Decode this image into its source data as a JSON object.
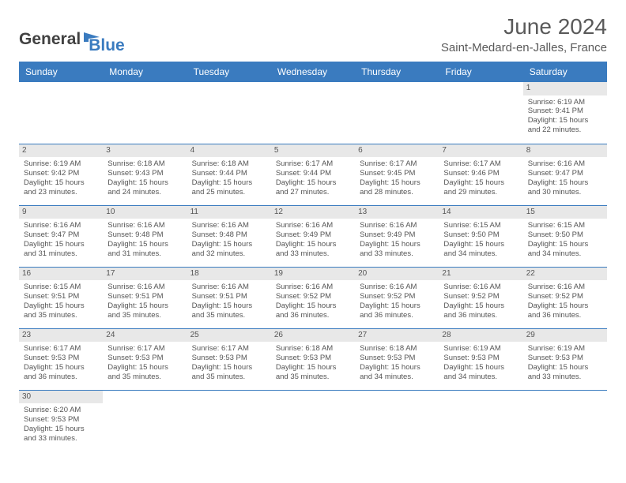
{
  "logo": {
    "dark": "General",
    "blue": "Blue"
  },
  "title": "June 2024",
  "location": "Saint-Medard-en-Jalles, France",
  "weekdays": [
    "Sunday",
    "Monday",
    "Tuesday",
    "Wednesday",
    "Thursday",
    "Friday",
    "Saturday"
  ],
  "colors": {
    "header_bg": "#3a7bbf",
    "header_fg": "#ffffff",
    "daynum_bg": "#e8e8e8",
    "rule": "#3a7bbf",
    "text": "#555555"
  },
  "grid": [
    [
      {
        "n": "",
        "sr": "",
        "ss": "",
        "dl": ""
      },
      {
        "n": "",
        "sr": "",
        "ss": "",
        "dl": ""
      },
      {
        "n": "",
        "sr": "",
        "ss": "",
        "dl": ""
      },
      {
        "n": "",
        "sr": "",
        "ss": "",
        "dl": ""
      },
      {
        "n": "",
        "sr": "",
        "ss": "",
        "dl": ""
      },
      {
        "n": "",
        "sr": "",
        "ss": "",
        "dl": ""
      },
      {
        "n": "1",
        "sr": "Sunrise: 6:19 AM",
        "ss": "Sunset: 9:41 PM",
        "dl": "Daylight: 15 hours and 22 minutes."
      }
    ],
    [
      {
        "n": "2",
        "sr": "Sunrise: 6:19 AM",
        "ss": "Sunset: 9:42 PM",
        "dl": "Daylight: 15 hours and 23 minutes."
      },
      {
        "n": "3",
        "sr": "Sunrise: 6:18 AM",
        "ss": "Sunset: 9:43 PM",
        "dl": "Daylight: 15 hours and 24 minutes."
      },
      {
        "n": "4",
        "sr": "Sunrise: 6:18 AM",
        "ss": "Sunset: 9:44 PM",
        "dl": "Daylight: 15 hours and 25 minutes."
      },
      {
        "n": "5",
        "sr": "Sunrise: 6:17 AM",
        "ss": "Sunset: 9:44 PM",
        "dl": "Daylight: 15 hours and 27 minutes."
      },
      {
        "n": "6",
        "sr": "Sunrise: 6:17 AM",
        "ss": "Sunset: 9:45 PM",
        "dl": "Daylight: 15 hours and 28 minutes."
      },
      {
        "n": "7",
        "sr": "Sunrise: 6:17 AM",
        "ss": "Sunset: 9:46 PM",
        "dl": "Daylight: 15 hours and 29 minutes."
      },
      {
        "n": "8",
        "sr": "Sunrise: 6:16 AM",
        "ss": "Sunset: 9:47 PM",
        "dl": "Daylight: 15 hours and 30 minutes."
      }
    ],
    [
      {
        "n": "9",
        "sr": "Sunrise: 6:16 AM",
        "ss": "Sunset: 9:47 PM",
        "dl": "Daylight: 15 hours and 31 minutes."
      },
      {
        "n": "10",
        "sr": "Sunrise: 6:16 AM",
        "ss": "Sunset: 9:48 PM",
        "dl": "Daylight: 15 hours and 31 minutes."
      },
      {
        "n": "11",
        "sr": "Sunrise: 6:16 AM",
        "ss": "Sunset: 9:48 PM",
        "dl": "Daylight: 15 hours and 32 minutes."
      },
      {
        "n": "12",
        "sr": "Sunrise: 6:16 AM",
        "ss": "Sunset: 9:49 PM",
        "dl": "Daylight: 15 hours and 33 minutes."
      },
      {
        "n": "13",
        "sr": "Sunrise: 6:16 AM",
        "ss": "Sunset: 9:49 PM",
        "dl": "Daylight: 15 hours and 33 minutes."
      },
      {
        "n": "14",
        "sr": "Sunrise: 6:15 AM",
        "ss": "Sunset: 9:50 PM",
        "dl": "Daylight: 15 hours and 34 minutes."
      },
      {
        "n": "15",
        "sr": "Sunrise: 6:15 AM",
        "ss": "Sunset: 9:50 PM",
        "dl": "Daylight: 15 hours and 34 minutes."
      }
    ],
    [
      {
        "n": "16",
        "sr": "Sunrise: 6:15 AM",
        "ss": "Sunset: 9:51 PM",
        "dl": "Daylight: 15 hours and 35 minutes."
      },
      {
        "n": "17",
        "sr": "Sunrise: 6:16 AM",
        "ss": "Sunset: 9:51 PM",
        "dl": "Daylight: 15 hours and 35 minutes."
      },
      {
        "n": "18",
        "sr": "Sunrise: 6:16 AM",
        "ss": "Sunset: 9:51 PM",
        "dl": "Daylight: 15 hours and 35 minutes."
      },
      {
        "n": "19",
        "sr": "Sunrise: 6:16 AM",
        "ss": "Sunset: 9:52 PM",
        "dl": "Daylight: 15 hours and 36 minutes."
      },
      {
        "n": "20",
        "sr": "Sunrise: 6:16 AM",
        "ss": "Sunset: 9:52 PM",
        "dl": "Daylight: 15 hours and 36 minutes."
      },
      {
        "n": "21",
        "sr": "Sunrise: 6:16 AM",
        "ss": "Sunset: 9:52 PM",
        "dl": "Daylight: 15 hours and 36 minutes."
      },
      {
        "n": "22",
        "sr": "Sunrise: 6:16 AM",
        "ss": "Sunset: 9:52 PM",
        "dl": "Daylight: 15 hours and 36 minutes."
      }
    ],
    [
      {
        "n": "23",
        "sr": "Sunrise: 6:17 AM",
        "ss": "Sunset: 9:53 PM",
        "dl": "Daylight: 15 hours and 36 minutes."
      },
      {
        "n": "24",
        "sr": "Sunrise: 6:17 AM",
        "ss": "Sunset: 9:53 PM",
        "dl": "Daylight: 15 hours and 35 minutes."
      },
      {
        "n": "25",
        "sr": "Sunrise: 6:17 AM",
        "ss": "Sunset: 9:53 PM",
        "dl": "Daylight: 15 hours and 35 minutes."
      },
      {
        "n": "26",
        "sr": "Sunrise: 6:18 AM",
        "ss": "Sunset: 9:53 PM",
        "dl": "Daylight: 15 hours and 35 minutes."
      },
      {
        "n": "27",
        "sr": "Sunrise: 6:18 AM",
        "ss": "Sunset: 9:53 PM",
        "dl": "Daylight: 15 hours and 34 minutes."
      },
      {
        "n": "28",
        "sr": "Sunrise: 6:19 AM",
        "ss": "Sunset: 9:53 PM",
        "dl": "Daylight: 15 hours and 34 minutes."
      },
      {
        "n": "29",
        "sr": "Sunrise: 6:19 AM",
        "ss": "Sunset: 9:53 PM",
        "dl": "Daylight: 15 hours and 33 minutes."
      }
    ],
    [
      {
        "n": "30",
        "sr": "Sunrise: 6:20 AM",
        "ss": "Sunset: 9:53 PM",
        "dl": "Daylight: 15 hours and 33 minutes."
      },
      {
        "n": "",
        "sr": "",
        "ss": "",
        "dl": ""
      },
      {
        "n": "",
        "sr": "",
        "ss": "",
        "dl": ""
      },
      {
        "n": "",
        "sr": "",
        "ss": "",
        "dl": ""
      },
      {
        "n": "",
        "sr": "",
        "ss": "",
        "dl": ""
      },
      {
        "n": "",
        "sr": "",
        "ss": "",
        "dl": ""
      },
      {
        "n": "",
        "sr": "",
        "ss": "",
        "dl": ""
      }
    ]
  ]
}
